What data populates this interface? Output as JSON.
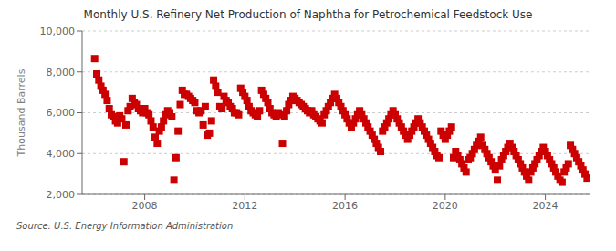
{
  "chart_data": {
    "type": "scatter",
    "title": "Monthly U.S. Refinery Net Production of Naphtha for Petrochemical Feedstock Use",
    "ylabel": "Thousand Barrels",
    "annotations": [
      "Source: U.S. Energy Information Administration"
    ],
    "color": "#cc0000",
    "marker": "square",
    "grid": "y",
    "xlim": [
      2005.5,
      2025.8
    ],
    "xticks": [
      2008,
      2012,
      2016,
      2020,
      2024
    ],
    "ylim": [
      2000,
      10000
    ],
    "yticks": [
      {
        "value": 2000,
        "label": "2,000"
      },
      {
        "value": 4000,
        "label": "4,000"
      },
      {
        "value": 6000,
        "label": "6,000"
      },
      {
        "value": 8000,
        "label": "8,000"
      },
      {
        "value": 10000,
        "label": "10,000"
      }
    ],
    "x": [
      2006,
      2006.0833333333333,
      2006.1666666666667,
      2006.25,
      2006.3333333333333,
      2006.4166666666667,
      2006.5,
      2006.5833333333333,
      2006.6666666666667,
      2006.75,
      2006.8333333333333,
      2006.9166666666667,
      2007,
      2007.0833333333333,
      2007.1666666666667,
      2007.25,
      2007.3333333333333,
      2007.4166666666667,
      2007.5,
      2007.5833333333333,
      2007.6666666666667,
      2007.75,
      2007.8333333333333,
      2007.9166666666667,
      2008,
      2008.0833333333333,
      2008.1666666666667,
      2008.25,
      2008.3333333333333,
      2008.4166666666667,
      2008.5,
      2008.5833333333333,
      2008.6666666666667,
      2008.75,
      2008.8333333333333,
      2008.9166666666667,
      2009,
      2009.0833333333333,
      2009.1666666666667,
      2009.25,
      2009.3333333333333,
      2009.4166666666667,
      2009.5,
      2009.5833333333333,
      2009.6666666666667,
      2009.75,
      2009.8333333333333,
      2009.9166666666667,
      2010,
      2010.0833333333333,
      2010.1666666666667,
      2010.25,
      2010.3333333333333,
      2010.4166666666667,
      2010.5,
      2010.5833333333333,
      2010.6666666666667,
      2010.75,
      2010.8333333333333,
      2010.9166666666667,
      2011,
      2011.0833333333333,
      2011.1666666666667,
      2011.25,
      2011.3333333333333,
      2011.4166666666667,
      2011.5,
      2011.5833333333333,
      2011.6666666666667,
      2011.75,
      2011.8333333333333,
      2011.9166666666667,
      2012,
      2012.0833333333333,
      2012.1666666666667,
      2012.25,
      2012.3333333333333,
      2012.4166666666667,
      2012.5,
      2012.5833333333333,
      2012.6666666666667,
      2012.75,
      2012.8333333333333,
      2012.9166666666667,
      2013,
      2013.0833333333333,
      2013.1666666666667,
      2013.25,
      2013.3333333333333,
      2013.4166666666667,
      2013.5,
      2013.5833333333333,
      2013.6666666666667,
      2013.75,
      2013.8333333333333,
      2013.9166666666667,
      2014,
      2014.0833333333333,
      2014.1666666666667,
      2014.25,
      2014.3333333333333,
      2014.4166666666667,
      2014.5,
      2014.5833333333333,
      2014.6666666666667,
      2014.75,
      2014.8333333333333,
      2014.9166666666667,
      2015,
      2015.0833333333333,
      2015.1666666666667,
      2015.25,
      2015.3333333333333,
      2015.4166666666667,
      2015.5,
      2015.5833333333333,
      2015.6666666666667,
      2015.75,
      2015.8333333333333,
      2015.9166666666667,
      2016,
      2016.0833333333333,
      2016.1666666666667,
      2016.25,
      2016.3333333333333,
      2016.4166666666667,
      2016.5,
      2016.5833333333333,
      2016.6666666666667,
      2016.75,
      2016.8333333333333,
      2016.9166666666667,
      2017,
      2017.0833333333333,
      2017.1666666666667,
      2017.25,
      2017.3333333333333,
      2017.4166666666667,
      2017.5,
      2017.5833333333333,
      2017.6666666666667,
      2017.75,
      2017.8333333333333,
      2017.9166666666667,
      2018,
      2018.0833333333333,
      2018.1666666666667,
      2018.25,
      2018.3333333333333,
      2018.4166666666667,
      2018.5,
      2018.5833333333333,
      2018.6666666666667,
      2018.75,
      2018.8333333333333,
      2018.9166666666667,
      2019,
      2019.0833333333333,
      2019.1666666666667,
      2019.25,
      2019.3333333333333,
      2019.4166666666667,
      2019.5,
      2019.5833333333333,
      2019.6666666666667,
      2019.75,
      2019.8333333333333,
      2019.9166666666667,
      2020,
      2020.0833333333333,
      2020.1666666666667,
      2020.25,
      2020.3333333333333,
      2020.4166666666667,
      2020.5,
      2020.5833333333333,
      2020.6666666666667,
      2020.75,
      2020.8333333333333,
      2020.9166666666667,
      2021,
      2021.0833333333333,
      2021.1666666666667,
      2021.25,
      2021.3333333333333,
      2021.4166666666667,
      2021.5,
      2021.5833333333333,
      2021.6666666666667,
      2021.75,
      2021.8333333333333,
      2021.9166666666667,
      2022,
      2022.0833333333333,
      2022.1666666666667,
      2022.25,
      2022.3333333333333,
      2022.4166666666667,
      2022.5,
      2022.5833333333333,
      2022.6666666666667,
      2022.75,
      2022.8333333333333,
      2022.9166666666667,
      2023,
      2023.0833333333333,
      2023.1666666666667,
      2023.25,
      2023.3333333333333,
      2023.4166666666667,
      2023.5,
      2023.5833333333333,
      2023.6666666666667,
      2023.75,
      2023.8333333333333,
      2023.9166666666667,
      2024,
      2024.0833333333333,
      2024.1666666666667,
      2024.25,
      2024.3333333333333,
      2024.4166666666667,
      2024.5,
      2024.5833333333333,
      2024.6666666666667,
      2024.75,
      2024.8333333333333,
      2024.9166666666667,
      2025,
      2025.0833333333333,
      2025.1666666666667,
      2025.25,
      2025.3333333333333,
      2025.4166666666667,
      2025.5,
      2025.5833333333333,
      2025.6666666666667
    ],
    "values": [
      8650,
      7900,
      7600,
      7300,
      7100,
      6900,
      6600,
      6200,
      5900,
      5800,
      5600,
      5500,
      5850,
      5700,
      3600,
      5400,
      6100,
      6300,
      6700,
      6500,
      6400,
      6200,
      6100,
      6000,
      6200,
      6000,
      5900,
      5600,
      5300,
      4800,
      4500,
      5100,
      5300,
      5600,
      5900,
      6100,
      6000,
      5800,
      2700,
      3800,
      5100,
      6400,
      7100,
      6900,
      6900,
      6800,
      6700,
      6600,
      6500,
      6100,
      6000,
      6100,
      5400,
      6300,
      4900,
      5000,
      5600,
      7600,
      7300,
      7000,
      6300,
      6200,
      6800,
      6600,
      6500,
      6300,
      6200,
      6000,
      6000,
      5900,
      7200,
      7000,
      6800,
      6600,
      6300,
      6100,
      6000,
      5900,
      5800,
      6100,
      7100,
      6900,
      6700,
      6500,
      6200,
      6000,
      5900,
      5800,
      6000,
      5900,
      4500,
      5800,
      6100,
      6400,
      6600,
      6800,
      6700,
      6600,
      6500,
      6400,
      6300,
      6200,
      6100,
      6000,
      6100,
      5900,
      5800,
      5700,
      5600,
      5500,
      5900,
      6100,
      6300,
      6500,
      6700,
      6900,
      6700,
      6500,
      6300,
      6100,
      5900,
      5700,
      5500,
      5300,
      5500,
      5700,
      5900,
      6100,
      5900,
      5700,
      5500,
      5300,
      5100,
      4900,
      4700,
      4500,
      4300,
      4100,
      5100,
      5300,
      5500,
      5700,
      5900,
      6100,
      5900,
      5700,
      5500,
      5300,
      5100,
      4900,
      4700,
      4900,
      5100,
      5300,
      5500,
      5700,
      5500,
      5300,
      5100,
      4900,
      4700,
      4500,
      4300,
      4100,
      3900,
      3800,
      5100,
      4900,
      4700,
      4900,
      5100,
      5300,
      3800,
      4100,
      3900,
      3700,
      3500,
      3300,
      3100,
      3700,
      3800,
      4000,
      4200,
      4400,
      4600,
      4800,
      4400,
      4200,
      4000,
      3800,
      3600,
      3400,
      3200,
      2700,
      3400,
      3700,
      3900,
      4100,
      4300,
      4500,
      4300,
      4100,
      3900,
      3700,
      3500,
      3300,
      3100,
      2900,
      2700,
      3100,
      3300,
      3500,
      3700,
      3900,
      4100,
      4300,
      4100,
      3900,
      3700,
      3500,
      3300,
      3100,
      2900,
      2700,
      2600,
      3100,
      3300,
      3500,
      4400,
      4200,
      4000,
      3800,
      3600,
      3400,
      3200,
      3000,
      2800
    ]
  }
}
